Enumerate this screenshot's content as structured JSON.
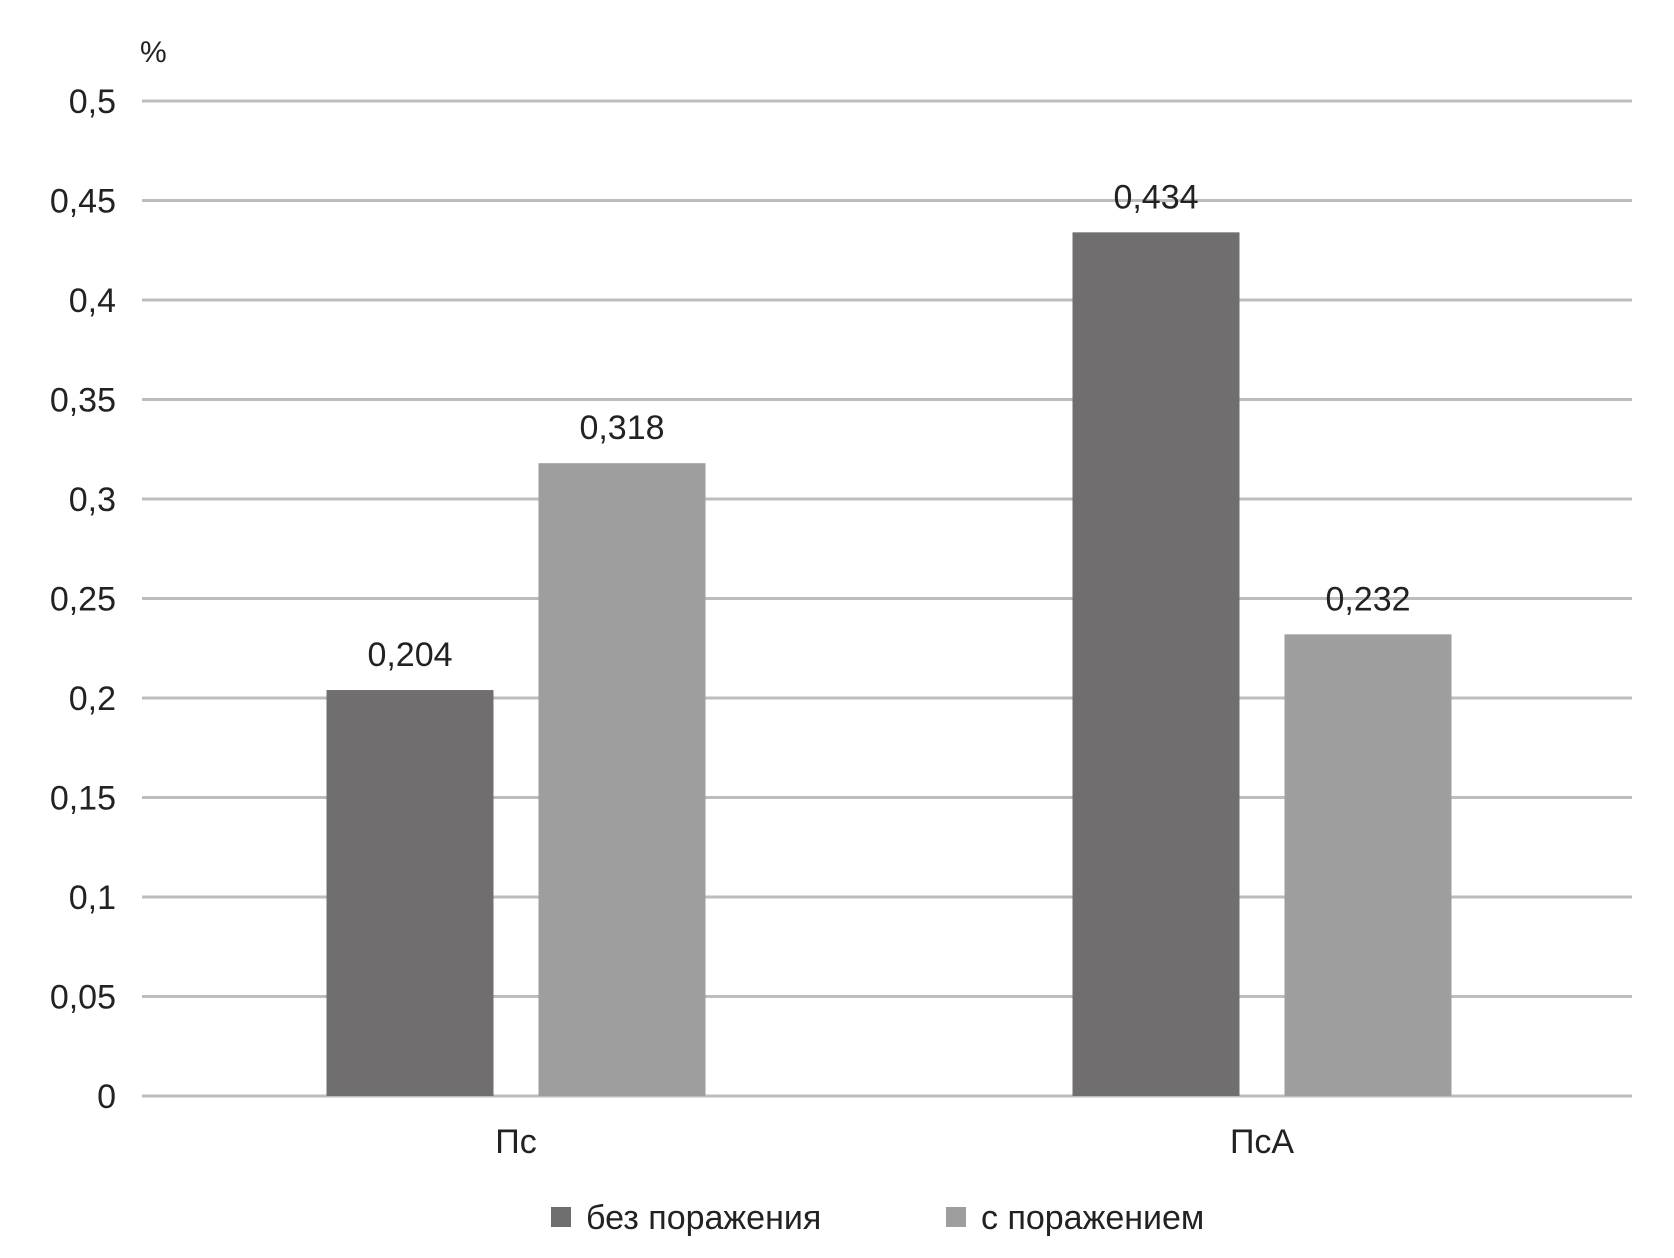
{
  "chart_data": {
    "type": "bar",
    "ylabel": "%",
    "categories": [
      "Пс",
      "ПсА"
    ],
    "series": [
      {
        "name": "без поражения",
        "values": [
          0.204,
          0.434
        ],
        "color": "#706e6f"
      },
      {
        "name": "с поражением",
        "values": [
          0.318,
          0.232
        ],
        "color": "#9e9e9e"
      }
    ],
    "value_labels": [
      [
        "0,204",
        "0,434"
      ],
      [
        "0,318",
        "0,232"
      ]
    ],
    "ylim": [
      0,
      0.5
    ],
    "yticks": [
      0,
      0.05,
      0.1,
      0.15,
      0.2,
      0.25,
      0.3,
      0.35,
      0.4,
      0.45,
      0.5
    ],
    "ytick_labels": [
      "0",
      "0,05",
      "0,1",
      "0,15",
      "0,2",
      "0,25",
      "0,3",
      "0,35",
      "0,4",
      "0,45",
      "0,5"
    ],
    "grid": true,
    "grid_color": "#bdbdbd",
    "legend_position": "bottom"
  }
}
